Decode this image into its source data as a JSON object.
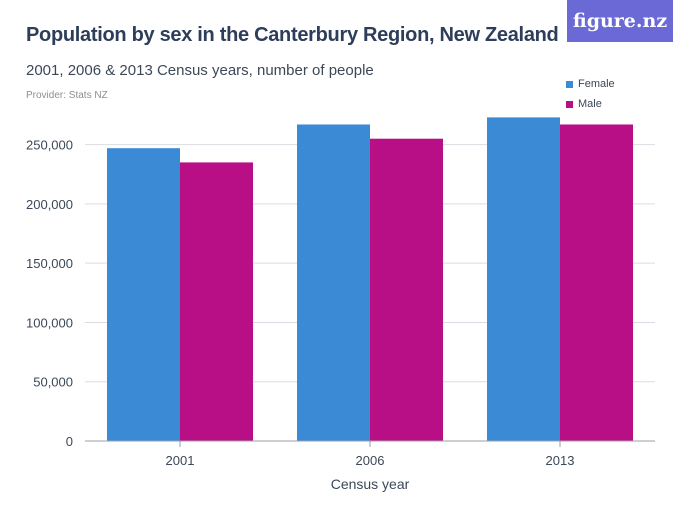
{
  "header": {
    "title": "Population by sex in the Canterbury Region, New Zealand",
    "subtitle": "2001, 2006 & 2013 Census years, number of people",
    "provider": "Provider: Stats NZ",
    "logo_text": "figure.nz"
  },
  "colors": {
    "female": "#3a8ad6",
    "male": "#b80e86",
    "gridline": "#d9dde3",
    "baseline": "#9aa0a8",
    "logo_bg": "#6b69d6"
  },
  "chart_data": {
    "type": "bar",
    "title": "Population by sex in the Canterbury Region, New Zealand",
    "subtitle": "2001, 2006 & 2013 Census years, number of people",
    "xlabel": "Census year",
    "ylabel": "",
    "categories": [
      "2001",
      "2006",
      "2013"
    ],
    "series": [
      {
        "name": "Female",
        "color": "#3a8ad6",
        "values": [
          247000,
          267000,
          273000
        ]
      },
      {
        "name": "Male",
        "color": "#b80e86",
        "values": [
          235000,
          255000,
          267000
        ]
      }
    ],
    "ylim": [
      0,
      275000
    ],
    "yticks": [
      0,
      50000,
      100000,
      150000,
      200000,
      250000
    ],
    "ytick_labels": [
      "0",
      "50,000",
      "100,000",
      "150,000",
      "200,000",
      "250,000"
    ],
    "legend_position": "top-right",
    "grid": true
  }
}
